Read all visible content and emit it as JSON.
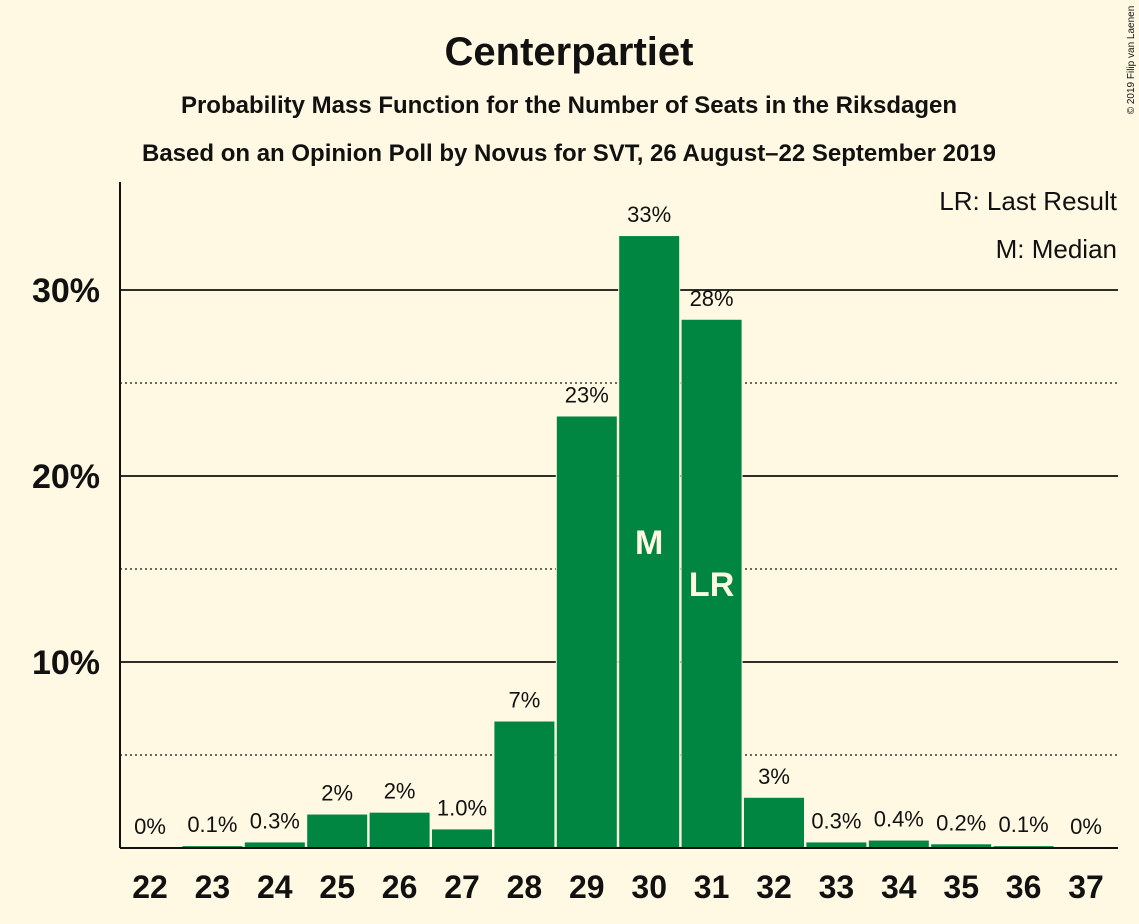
{
  "chart_data": {
    "type": "bar",
    "title": "Centerpartiet",
    "subtitle": "Probability Mass Function for the Number of Seats in the Riksdagen",
    "subtitle2": "Based on an Opinion Poll by Novus for SVT, 26 August–22 September 2019",
    "xlabel": "",
    "ylabel": "",
    "categories": [
      "22",
      "23",
      "24",
      "25",
      "26",
      "27",
      "28",
      "29",
      "30",
      "31",
      "32",
      "33",
      "34",
      "35",
      "36",
      "37"
    ],
    "values": [
      0,
      0.1,
      0.3,
      1.8,
      1.9,
      1.0,
      6.8,
      23.2,
      32.9,
      28.4,
      2.7,
      0.3,
      0.4,
      0.2,
      0.1,
      0
    ],
    "labels": [
      "0%",
      "0.1%",
      "0.3%",
      "2%",
      "2%",
      "1.0%",
      "7%",
      "23%",
      "33%",
      "28%",
      "3%",
      "0.3%",
      "0.4%",
      "0.2%",
      "0.1%",
      "0%"
    ],
    "ylim": [
      0,
      36
    ],
    "yticks": [
      10,
      20,
      30
    ],
    "ytick_labels": [
      "10%",
      "20%",
      "30%"
    ],
    "minor_gridlines": [
      5,
      15,
      25
    ],
    "grid": true,
    "markers": [
      {
        "category": "30",
        "text": "M"
      },
      {
        "category": "31",
        "text": "LR"
      }
    ],
    "legend": {
      "position": "top-right",
      "entries": [
        "LR: Last Result",
        "M: Median"
      ]
    },
    "bar_color": "#008640",
    "background_color": "#fff9e3",
    "copyright": "© 2019 Filip van Laenen"
  }
}
